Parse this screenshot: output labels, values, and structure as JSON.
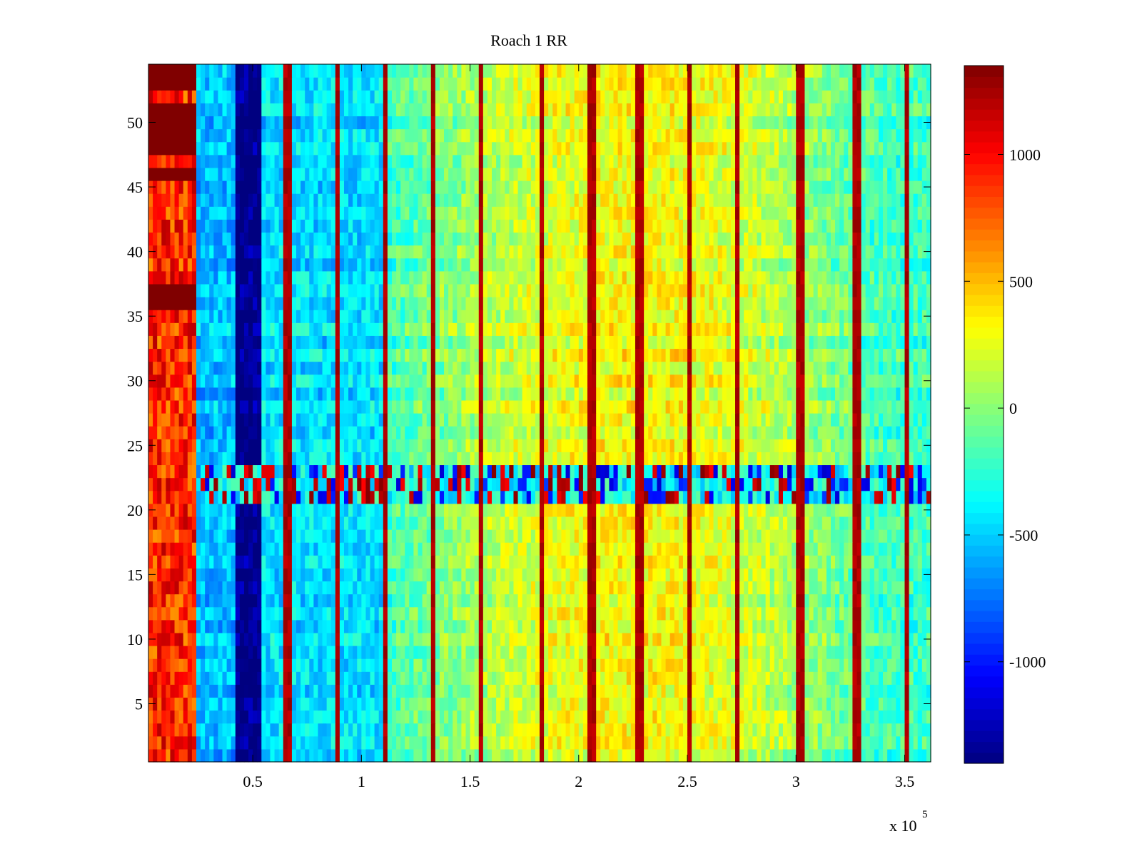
{
  "chart_data": {
    "type": "heatmap",
    "title": "Roach 1 RR",
    "xlabel": "",
    "ylabel": "",
    "x_exponent_label": {
      "base": "x 10",
      "exponent": "5"
    },
    "xlim": [
      2000,
      362000
    ],
    "ylim": [
      0.5,
      54.5
    ],
    "xticks": [
      {
        "value": 50000,
        "label": "0.5"
      },
      {
        "value": 100000,
        "label": "1"
      },
      {
        "value": 150000,
        "label": "1.5"
      },
      {
        "value": 200000,
        "label": "2"
      },
      {
        "value": 250000,
        "label": "2.5"
      },
      {
        "value": 300000,
        "label": "3"
      },
      {
        "value": 350000,
        "label": "3.5"
      }
    ],
    "yticks": [
      {
        "value": 5,
        "label": "5"
      },
      {
        "value": 10,
        "label": "10"
      },
      {
        "value": 15,
        "label": "15"
      },
      {
        "value": 20,
        "label": "20"
      },
      {
        "value": 25,
        "label": "25"
      },
      {
        "value": 30,
        "label": "30"
      },
      {
        "value": 35,
        "label": "35"
      },
      {
        "value": 40,
        "label": "40"
      },
      {
        "value": 45,
        "label": "45"
      },
      {
        "value": 50,
        "label": "50"
      }
    ],
    "colormap": "jet",
    "clim": [
      -1400,
      1350
    ],
    "colorbar_ticks": [
      {
        "value": 1000,
        "label": "1000"
      },
      {
        "value": 500,
        "label": "500"
      },
      {
        "value": 0,
        "label": "0"
      },
      {
        "value": -500,
        "label": "-500"
      },
      {
        "value": -1000,
        "label": "-1000"
      }
    ],
    "rows": 54,
    "columns": 180,
    "column_width": 2000,
    "dominant_regions": [
      {
        "x_range": [
          2000,
          25000
        ],
        "rows": "all",
        "approx_value": 1000
      },
      {
        "x_range": [
          25000,
          42000
        ],
        "rows": "all",
        "approx_value": -550
      },
      {
        "x_range": [
          42000,
          54000
        ],
        "rows": "all",
        "approx_value": -1400
      },
      {
        "x_range": [
          54000,
          112000
        ],
        "rows": "all",
        "approx_value": -450
      },
      {
        "x_range": [
          112000,
          362000
        ],
        "rows": "all",
        "approx_value": 100
      }
    ],
    "saturated_rows_left_band": [
      36,
      37,
      46,
      48,
      49,
      50,
      51,
      53,
      54
    ],
    "spike_columns_x": [
      11000,
      66000,
      89000,
      111000,
      133000,
      155000,
      183000,
      206000,
      228000,
      251000,
      273000,
      302000,
      328000,
      351000
    ],
    "spike_value": 1300,
    "noisy_rows": [
      21,
      22,
      23
    ]
  }
}
